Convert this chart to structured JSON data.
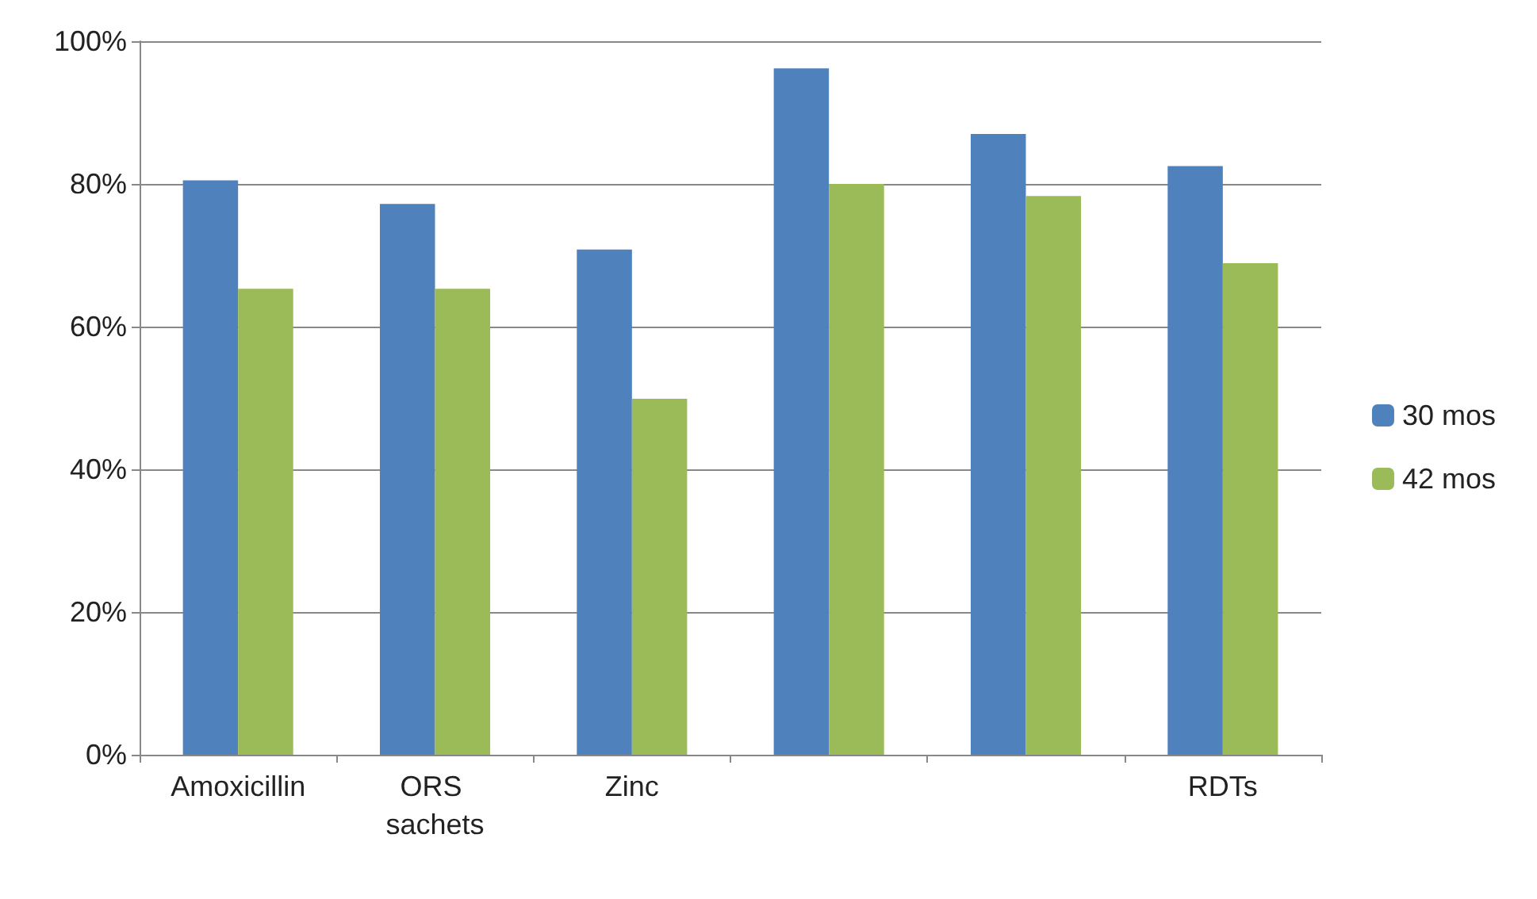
{
  "chart_data": {
    "type": "bar",
    "categories": [
      "Amoxicillin",
      "ORS sachets",
      "Zinc",
      null,
      null,
      "RDTs"
    ],
    "series": [
      {
        "name": "30 mos",
        "color": "#4f81bd",
        "values": [
          80.5,
          77.2,
          70.8,
          96.2,
          87.0,
          82.5
        ]
      },
      {
        "name": "42 mos",
        "color": "#9bbb59",
        "values": [
          65.3,
          65.3,
          49.9,
          80.0,
          78.3,
          68.9
        ]
      }
    ],
    "ylim": [
      0,
      100
    ],
    "yticks": [
      {
        "value": 0,
        "label": "0%"
      },
      {
        "value": 20,
        "label": "20%"
      },
      {
        "value": 40,
        "label": "40%"
      },
      {
        "value": 60,
        "label": "60%"
      },
      {
        "value": 80,
        "label": "80%"
      },
      {
        "value": 100,
        "label": "100%"
      }
    ],
    "grid": "y",
    "legend": "right"
  }
}
